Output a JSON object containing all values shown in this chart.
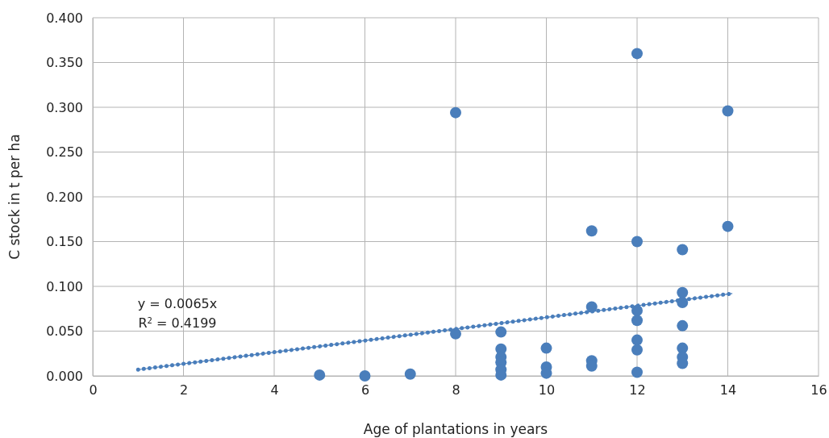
{
  "chart_data": {
    "type": "scatter",
    "xlabel": "Age of plantations in years",
    "ylabel": "C stock in t per ha",
    "xlim": [
      0,
      16
    ],
    "xticks": [
      0,
      2,
      4,
      6,
      8,
      10,
      12,
      14,
      16
    ],
    "ylim": [
      0,
      0.4
    ],
    "yticks": [
      {
        "value": 0,
        "label": "0.000"
      },
      {
        "value": 0.05,
        "label": "0.050"
      },
      {
        "value": 0.1,
        "label": "0.100"
      },
      {
        "value": 0.15,
        "label": "0.150"
      },
      {
        "value": 0.2,
        "label": "0.200"
      },
      {
        "value": 0.25,
        "label": "0.250"
      },
      {
        "value": 0.3,
        "label": "0.300"
      },
      {
        "value": 0.35,
        "label": "0.350"
      },
      {
        "value": 0.4,
        "label": "0.400"
      }
    ],
    "grid": true,
    "series": [
      {
        "marker": "circle",
        "color": "#4a7ebb",
        "x": [
          5,
          6,
          7,
          8,
          8,
          9,
          9,
          9,
          9,
          9,
          9,
          10,
          10,
          10,
          11,
          11,
          11,
          11,
          12,
          12,
          12,
          12,
          12,
          12,
          12,
          13,
          13,
          13,
          13,
          13,
          13,
          13,
          14,
          14
        ],
        "values": [
          0.001,
          0.0,
          0.002,
          0.294,
          0.047,
          0.049,
          0.03,
          0.021,
          0.015,
          0.007,
          0.001,
          0.031,
          0.01,
          0.003,
          0.162,
          0.077,
          0.017,
          0.011,
          0.36,
          0.15,
          0.073,
          0.062,
          0.04,
          0.029,
          0.004,
          0.141,
          0.093,
          0.082,
          0.056,
          0.031,
          0.021,
          0.014,
          0.296,
          0.167
        ]
      },
      {
        "type": "line",
        "marker": "none",
        "color": "#4a7ebb",
        "line_style": "dotted",
        "x": [
          1,
          14.1
        ],
        "values": [
          0.007,
          0.092
        ]
      }
    ],
    "annotations": [
      "y = 0.0065x",
      "R$^{2}$ = 0.4199"
    ]
  }
}
